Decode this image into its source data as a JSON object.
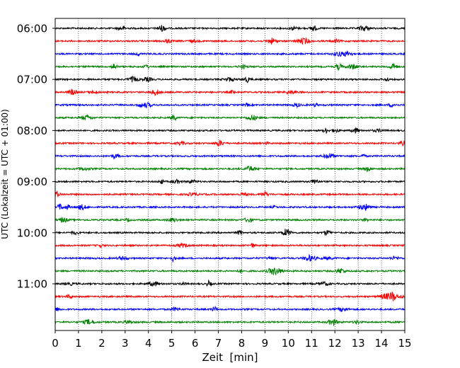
{
  "chart_data": {
    "type": "line",
    "title": "",
    "xlabel": "Zeit  [min]",
    "ylabel": "UTC (Lokalzeit = UTC + 01:00)",
    "xlim": [
      0,
      15
    ],
    "x_ticks": [
      0,
      1,
      2,
      3,
      4,
      5,
      6,
      7,
      8,
      9,
      10,
      11,
      12,
      13,
      14,
      15
    ],
    "y_tick_labels": [
      "06:00",
      "07:00",
      "08:00",
      "09:00",
      "10:00",
      "11:00"
    ],
    "trace_colors": [
      "#000000",
      "#ff0000",
      "#0000ff",
      "#008000"
    ],
    "trace_count": 24,
    "trace_interval_min": 15,
    "grid": "vertical-dotted"
  }
}
